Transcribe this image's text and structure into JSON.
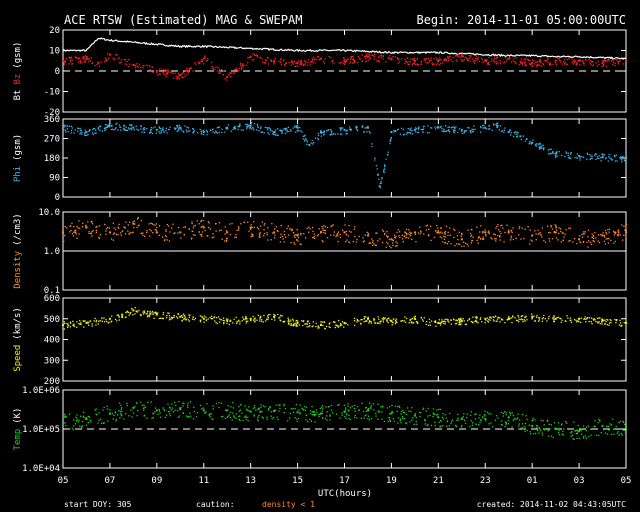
{
  "header": {
    "title": "ACE RTSW (Estimated) MAG & SWEPAM",
    "begin": "Begin: 2014-11-01 05:00:00UTC"
  },
  "footer": {
    "start_doy": "start DOY: 305",
    "caution": "caution:",
    "density_note": "density < 1",
    "created": "created: 2014-11-02 04:43:05UTC"
  },
  "colors": {
    "background": "#000000",
    "bt": "#ffffff",
    "bz": "#ff2020",
    "phi": "#3cb4e6",
    "density": "#ff8c28",
    "speed": "#f0f020",
    "temp": "#20d020"
  },
  "chart_data": {
    "type": "scatter",
    "x_axis": {
      "label": "UTC(hours)",
      "ticks": [
        "05",
        "07",
        "09",
        "11",
        "13",
        "15",
        "17",
        "19",
        "21",
        "23",
        "01",
        "03",
        "05"
      ],
      "range_hours": [
        0,
        24
      ]
    },
    "panels": [
      {
        "id": "mag",
        "ylabel_parts": [
          {
            "text": "Bt",
            "color": "#ffffff"
          },
          {
            "text": "Bz",
            "color": "#ff2020"
          },
          {
            "text": "(gsm)",
            "color": "#ffffff"
          }
        ],
        "yticks": [
          "20",
          "10",
          "0",
          "-10",
          "-20"
        ],
        "ylim": [
          -20,
          20
        ],
        "scale": "linear",
        "dashed_ref": 0,
        "series": [
          {
            "name": "Bt",
            "color": "#ffffff",
            "style": "line",
            "x": [
              0,
              1,
              1.5,
              2,
              3,
              4,
              5,
              6,
              7,
              8,
              9,
              10,
              11,
              12,
              13,
              14,
              15,
              16,
              17,
              18,
              19,
              20,
              21,
              22,
              23,
              24
            ],
            "y": [
              10,
              10,
              16,
              15,
              14,
              13,
              12,
              12,
              11.5,
              11,
              10.5,
              10,
              10,
              10,
              9.5,
              9,
              9,
              9,
              8.5,
              8,
              7.5,
              7.5,
              7,
              7,
              6.5,
              6
            ]
          },
          {
            "name": "Bz",
            "color": "#ff2020",
            "style": "dots",
            "x": [
              0,
              1,
              1.5,
              2,
              3,
              4,
              5,
              6,
              7,
              8,
              9,
              10,
              11,
              12,
              13,
              14,
              15,
              16,
              17,
              18,
              19,
              20,
              21,
              22,
              23,
              24
            ],
            "y": [
              5,
              6,
              4,
              8,
              3,
              0,
              -2,
              6,
              -3,
              7,
              5,
              4,
              6,
              5,
              7,
              6,
              5,
              5,
              7,
              5,
              6,
              4,
              5,
              5,
              4,
              5
            ]
          }
        ]
      },
      {
        "id": "phi",
        "ylabel_parts": [
          {
            "text": "Phi",
            "color": "#3cb4e6"
          },
          {
            "text": "(gsm)",
            "color": "#ffffff"
          }
        ],
        "yticks": [
          "360",
          "270",
          "180",
          "90",
          "0"
        ],
        "ylim": [
          0,
          360
        ],
        "scale": "linear",
        "series": [
          {
            "name": "Phi",
            "color": "#3cb4e6",
            "style": "dots",
            "x": [
              0,
              1,
              2,
              3,
              4,
              5,
              6,
              7,
              8,
              9,
              10,
              10.5,
              11,
              12,
              13,
              13.5,
              14,
              15,
              16,
              17,
              18,
              18.5,
              19,
              19.5,
              20,
              21,
              22,
              23,
              24
            ],
            "y": [
              320,
              300,
              330,
              320,
              310,
              320,
              300,
              320,
              330,
              300,
              320,
              240,
              300,
              310,
              320,
              50,
              300,
              310,
              320,
              310,
              320,
              330,
              300,
              280,
              250,
              200,
              190,
              185,
              180
            ]
          }
        ]
      },
      {
        "id": "density",
        "ylabel_parts": [
          {
            "text": "Density",
            "color": "#ff8c28"
          },
          {
            "text": "(/cm3)",
            "color": "#ffffff"
          }
        ],
        "yticks": [
          "10.0",
          "1.0",
          "0.1"
        ],
        "ylim": [
          0.1,
          10
        ],
        "scale": "log",
        "solid_ref": 1.0,
        "series": [
          {
            "name": "Density",
            "color": "#ff8c28",
            "style": "dots",
            "x": [
              0,
              1,
              2,
              3,
              4,
              5,
              6,
              7,
              8,
              9,
              10,
              11,
              12,
              13,
              14,
              15,
              16,
              17,
              18,
              19,
              20,
              21,
              22,
              23,
              24
            ],
            "y": [
              3,
              4,
              3,
              5,
              3,
              3,
              4,
              3,
              4,
              3,
              2.5,
              3,
              3,
              2.5,
              2,
              3,
              3,
              2,
              3,
              3,
              2.5,
              3,
              2,
              2.5,
              3
            ]
          }
        ]
      },
      {
        "id": "speed",
        "ylabel_parts": [
          {
            "text": "Speed",
            "color": "#f0f020"
          },
          {
            "text": "(km/s)",
            "color": "#ffffff"
          }
        ],
        "yticks": [
          "600",
          "500",
          "400",
          "300",
          "200"
        ],
        "ylim": [
          200,
          600
        ],
        "scale": "linear",
        "series": [
          {
            "name": "Speed",
            "color": "#f0f020",
            "style": "dots",
            "x": [
              0,
              1,
              2,
              3,
              4,
              5,
              6,
              7,
              8,
              9,
              10,
              11,
              12,
              13,
              14,
              15,
              16,
              17,
              18,
              19,
              20,
              21,
              22,
              23,
              24
            ],
            "y": [
              470,
              480,
              500,
              540,
              520,
              510,
              500,
              490,
              500,
              510,
              480,
              470,
              480,
              500,
              490,
              500,
              480,
              490,
              500,
              500,
              510,
              500,
              500,
              490,
              480
            ]
          }
        ]
      },
      {
        "id": "temp",
        "ylabel_parts": [
          {
            "text": "Temp",
            "color": "#20d020"
          },
          {
            "text": "(K)",
            "color": "#ffffff"
          }
        ],
        "yticks": [
          "1.0E+06",
          "1.0E+05",
          "1.0E+04"
        ],
        "ylim": [
          10000,
          1000000
        ],
        "scale": "log",
        "dashed_ref": 100000,
        "series": [
          {
            "name": "Temp",
            "color": "#20d020",
            "style": "dots",
            "x": [
              0,
              1,
              2,
              3,
              4,
              5,
              6,
              7,
              8,
              9,
              10,
              11,
              12,
              13,
              14,
              15,
              16,
              17,
              18,
              19,
              20,
              21,
              22,
              23,
              24
            ],
            "y": [
              150000,
              180000,
              250000,
              350000,
              300000,
              320000,
              300000,
              300000,
              280000,
              290000,
              270000,
              250000,
              280000,
              300000,
              250000,
              220000,
              200000,
              180000,
              180000,
              200000,
              120000,
              100000,
              90000,
              120000,
              110000
            ]
          }
        ]
      }
    ]
  }
}
